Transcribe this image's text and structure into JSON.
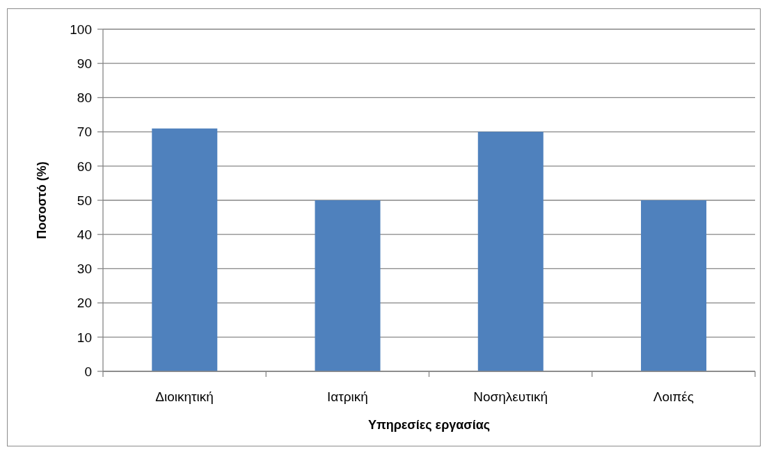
{
  "chart_data": {
    "type": "bar",
    "xlabel": "Υπηρεσίες εργασίας",
    "ylabel": "Ποσοστό (%)",
    "categories": [
      "Διοικητική",
      "Ιατρική",
      "Νοσηλευτική",
      "Λοιπές"
    ],
    "values": [
      71,
      50,
      70,
      50
    ],
    "color": "#4f81bd",
    "ylim": [
      0,
      100
    ],
    "yticks": [
      0,
      10,
      20,
      30,
      40,
      50,
      60,
      70,
      80,
      90,
      100
    ],
    "grid": "y"
  }
}
